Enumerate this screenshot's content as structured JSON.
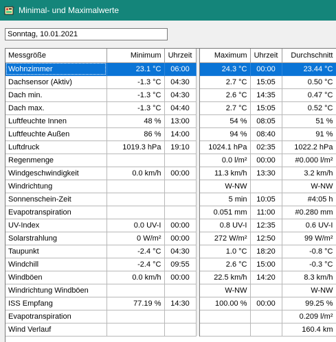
{
  "window": {
    "title": "Minimal- und Maximalwerte",
    "icon": "weather-station-icon"
  },
  "date_field": {
    "value": "Sonntag, 10.01.2021"
  },
  "table": {
    "columns": [
      "Messgröße",
      "Minimum",
      "Uhrzeit",
      "Maximum",
      "Uhrzeit",
      "Durchschnitt"
    ],
    "selected_row": 0,
    "rows": [
      {
        "name": "Wohnzimmer",
        "min": "23.1 °C",
        "min_time": "06:00",
        "max": "24.3 °C",
        "max_time": "00:00",
        "avg": "23.44 °C"
      },
      {
        "name": "Dachsensor (Aktiv)",
        "min": "-1.3 °C",
        "min_time": "04:30",
        "max": "2.7 °C",
        "max_time": "15:05",
        "avg": "0.50 °C"
      },
      {
        "name": "Dach min.",
        "min": "-1.3 °C",
        "min_time": "04:30",
        "max": "2.6 °C",
        "max_time": "14:35",
        "avg": "0.47 °C"
      },
      {
        "name": "Dach max.",
        "min": "-1.3 °C",
        "min_time": "04:40",
        "max": "2.7 °C",
        "max_time": "15:05",
        "avg": "0.52 °C"
      },
      {
        "name": "Luftfeuchte Innen",
        "min": "48 %",
        "min_time": "13:00",
        "max": "54 %",
        "max_time": "08:05",
        "avg": "51 %"
      },
      {
        "name": "Luftfeuchte Außen",
        "min": "86 %",
        "min_time": "14:00",
        "max": "94 %",
        "max_time": "08:40",
        "avg": "91 %"
      },
      {
        "name": "Luftdruck",
        "min": "1019.3 hPa",
        "min_time": "19:10",
        "max": "1024.1 hPa",
        "max_time": "02:35",
        "avg": "1022.2 hPa"
      },
      {
        "name": "Regenmenge",
        "min": "",
        "min_time": "",
        "max": "0.0 l/m²",
        "max_time": "00:00",
        "avg": "#0.000 l/m²"
      },
      {
        "name": "Windgeschwindigkeit",
        "min": "0.0 km/h",
        "min_time": "00:00",
        "max": "11.3 km/h",
        "max_time": "13:30",
        "avg": "3.2 km/h"
      },
      {
        "name": "Windrichtung",
        "min": "",
        "min_time": "",
        "max": "W-NW",
        "max_time": "",
        "avg": "W-NW"
      },
      {
        "name": "Sonnenschein-Zeit",
        "min": "",
        "min_time": "",
        "max": "5 min",
        "max_time": "10:05",
        "avg": "#4:05 h"
      },
      {
        "name": "Evapotranspiration",
        "min": "",
        "min_time": "",
        "max": "0.051 mm",
        "max_time": "11:00",
        "avg": "#0.280 mm"
      },
      {
        "name": "UV-Index",
        "min": "0.0 UV-I",
        "min_time": "00:00",
        "max": "0.8 UV-I",
        "max_time": "12:35",
        "avg": "0.6 UV-I"
      },
      {
        "name": "Solarstrahlung",
        "min": "0 W/m²",
        "min_time": "00:00",
        "max": "272 W/m²",
        "max_time": "12:50",
        "avg": "99 W/m²"
      },
      {
        "name": "Taupunkt",
        "min": "-2.4 °C",
        "min_time": "04:30",
        "max": "1.0 °C",
        "max_time": "18:20",
        "avg": "-0.8 °C"
      },
      {
        "name": "Windchill",
        "min": "-2.4 °C",
        "min_time": "09:55",
        "max": "2.6 °C",
        "max_time": "15:00",
        "avg": "-0.3 °C"
      },
      {
        "name": "Windböen",
        "min": "0.0 km/h",
        "min_time": "00:00",
        "max": "22.5 km/h",
        "max_time": "14:20",
        "avg": "8.3 km/h"
      },
      {
        "name": "Windrichtung Windböen",
        "min": "",
        "min_time": "",
        "max": "W-NW",
        "max_time": "",
        "avg": "W-NW"
      },
      {
        "name": "ISS Empfang",
        "min": "77.19 %",
        "min_time": "14:30",
        "max": "100.00 %",
        "max_time": "00:00",
        "avg": "99.25 %"
      },
      {
        "name": "Evapotranspiration",
        "min": "",
        "min_time": "",
        "max": "",
        "max_time": "",
        "avg": "0.209 l/m²"
      },
      {
        "name": "Wind Verlauf",
        "min": "",
        "min_time": "",
        "max": "",
        "max_time": "",
        "avg": "160.4 km"
      }
    ]
  },
  "colors": {
    "titlebar": "#14857a",
    "selection": "#0a74d6",
    "title_text": "#ffffff"
  }
}
